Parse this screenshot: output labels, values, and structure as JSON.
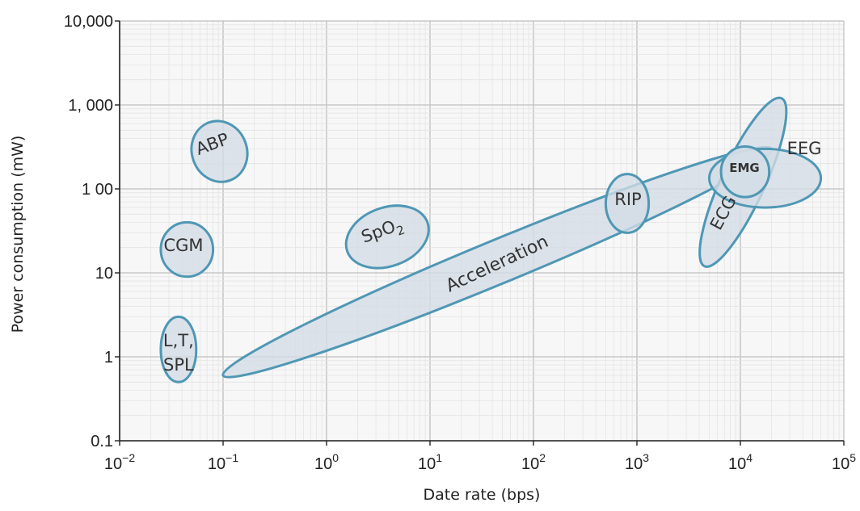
{
  "chart_data": {
    "type": "scatter",
    "title": "",
    "xlabel": "Date rate (bps)",
    "ylabel": "Power consumption (mW)",
    "x_scale": "log",
    "y_scale": "log",
    "xlim": [
      0.01,
      100000
    ],
    "ylim": [
      0.1,
      10000
    ],
    "x_ticks": [
      {
        "value": 0.01,
        "base": "10",
        "exp": "−2"
      },
      {
        "value": 0.1,
        "base": "10",
        "exp": "−1"
      },
      {
        "value": 1,
        "base": "10",
        "exp": "0"
      },
      {
        "value": 10,
        "base": "10",
        "exp": "1"
      },
      {
        "value": 100,
        "base": "10",
        "exp": "2"
      },
      {
        "value": 1000,
        "base": "10",
        "exp": "3"
      },
      {
        "value": 10000,
        "base": "10",
        "exp": "4"
      },
      {
        "value": 100000,
        "base": "10",
        "exp": "5"
      }
    ],
    "y_ticks": [
      {
        "value": 0.1,
        "label": "0.1"
      },
      {
        "value": 1,
        "label": "1"
      },
      {
        "value": 10,
        "label": "10"
      },
      {
        "value": 100,
        "label": "1 00"
      },
      {
        "value": 1000,
        "label": "1, 000"
      },
      {
        "value": 10000,
        "label": "10,000"
      }
    ],
    "grid": true,
    "colors": {
      "ellipse_stroke": "#4f97b5",
      "ellipse_fill": "#d3dde6",
      "grid_major": "#c8c8c8",
      "grid_minor": "#e4e4e4"
    },
    "regions": [
      {
        "label": "Acceleration",
        "x_range": [
          0.1,
          20000
        ],
        "y_range": [
          0.6,
          300
        ]
      },
      {
        "label": "ECG",
        "x_range": [
          4500,
          25000
        ],
        "y_range": [
          12,
          1200
        ]
      },
      {
        "label": "EEG",
        "x_range": [
          5000,
          60000
        ],
        "y_range": [
          60,
          300
        ]
      },
      {
        "label": "EMG",
        "x_range": [
          6500,
          19000
        ],
        "y_range": [
          80,
          320
        ]
      },
      {
        "label": "RIP",
        "x_range": [
          500,
          1300
        ],
        "y_range": [
          30,
          150
        ]
      },
      {
        "label": "SpO2",
        "label_main": "SpO",
        "label_sub": "2",
        "x_range": [
          1.5,
          10
        ],
        "y_range": [
          12,
          60
        ]
      },
      {
        "label": "ABP",
        "x_range": [
          0.05,
          0.17
        ],
        "y_range": [
          120,
          650
        ]
      },
      {
        "label": "CGM",
        "x_range": [
          0.025,
          0.08
        ],
        "y_range": [
          9,
          40
        ]
      },
      {
        "label": "L,T, SPL",
        "label_lines": [
          "L,T,",
          "SPL"
        ],
        "x_range": [
          0.025,
          0.055
        ],
        "y_range": [
          0.5,
          3
        ]
      }
    ]
  }
}
